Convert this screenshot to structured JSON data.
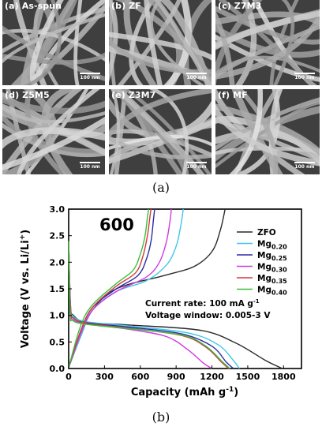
{
  "figure": {
    "panel_a": {
      "caption": "(a)",
      "images": [
        {
          "label": "(a) As-spun",
          "scale_bar": "100 nm"
        },
        {
          "label": "(b) ZF",
          "scale_bar": "100 nm"
        },
        {
          "label": "(c) Z7M3",
          "scale_bar": "100 nm"
        },
        {
          "label": "(d) Z5M5",
          "scale_bar": "100 nm"
        },
        {
          "label": "(e) Z3M7",
          "scale_bar": "100 nm"
        },
        {
          "label": "(f) MF",
          "scale_bar": "100 nm"
        }
      ]
    },
    "panel_b": {
      "caption": "(b)",
      "annotation_number": "600",
      "annotation_rate_pre": "Current rate: 100 mA g",
      "annotation_rate_sup": "-1",
      "annotation_window": "Voltage window: 0.005-3 V"
    }
  },
  "chart_data": {
    "type": "line",
    "title": "600",
    "xlabel": "Capacity (mAh g-1)",
    "ylabel": "Voltage (V vs. Li/Li+)",
    "xlim": [
      0,
      1950
    ],
    "ylim": [
      0,
      3.0
    ],
    "xticks": [
      "0",
      "300",
      "600",
      "900",
      "1200",
      "1500",
      "1800"
    ],
    "yticks": [
      "0.0",
      "0.5",
      "1.0",
      "1.5",
      "2.0",
      "2.5",
      "3.0"
    ],
    "legend_position": "top-right",
    "series": [
      {
        "name": "ZFO",
        "color": "#2a2a2a",
        "discharge": [
          [
            0,
            2.4
          ],
          [
            15,
            1.2
          ],
          [
            40,
            1.0
          ],
          [
            150,
            0.87
          ],
          [
            500,
            0.82
          ],
          [
            1100,
            0.72
          ],
          [
            1400,
            0.48
          ],
          [
            1650,
            0.15
          ],
          [
            1790,
            0.0
          ]
        ],
        "charge": [
          [
            0,
            0.02
          ],
          [
            100,
            0.6
          ],
          [
            200,
            1.1
          ],
          [
            400,
            1.5
          ],
          [
            800,
            1.75
          ],
          [
            1050,
            1.92
          ],
          [
            1200,
            2.2
          ],
          [
            1270,
            2.6
          ],
          [
            1310,
            3.0
          ]
        ]
      },
      {
        "name": "Mg0.20",
        "color": "#3ec8e8",
        "discharge": [
          [
            0,
            2.4
          ],
          [
            15,
            1.2
          ],
          [
            40,
            0.98
          ],
          [
            150,
            0.88
          ],
          [
            500,
            0.8
          ],
          [
            1000,
            0.67
          ],
          [
            1250,
            0.45
          ],
          [
            1380,
            0.15
          ],
          [
            1430,
            0.0
          ]
        ],
        "charge": [
          [
            0,
            0.02
          ],
          [
            100,
            0.6
          ],
          [
            200,
            1.1
          ],
          [
            400,
            1.45
          ],
          [
            650,
            1.65
          ],
          [
            820,
            1.95
          ],
          [
            900,
            2.3
          ],
          [
            940,
            2.7
          ],
          [
            960,
            3.0
          ]
        ]
      },
      {
        "name": "Mg0.25",
        "color": "#2c2ca8",
        "discharge": [
          [
            0,
            2.4
          ],
          [
            15,
            1.15
          ],
          [
            40,
            0.95
          ],
          [
            150,
            0.86
          ],
          [
            500,
            0.78
          ],
          [
            950,
            0.65
          ],
          [
            1200,
            0.42
          ],
          [
            1320,
            0.12
          ],
          [
            1380,
            0.0
          ]
        ],
        "charge": [
          [
            0,
            0.02
          ],
          [
            100,
            0.7
          ],
          [
            200,
            1.15
          ],
          [
            400,
            1.5
          ],
          [
            580,
            1.75
          ],
          [
            650,
            2.05
          ],
          [
            690,
            2.4
          ],
          [
            710,
            2.8
          ],
          [
            720,
            3.0
          ]
        ]
      },
      {
        "name": "Mg0.30",
        "color": "#d03ae0",
        "discharge": [
          [
            0,
            2.4
          ],
          [
            15,
            1.1
          ],
          [
            40,
            0.92
          ],
          [
            150,
            0.84
          ],
          [
            500,
            0.74
          ],
          [
            820,
            0.6
          ],
          [
            1000,
            0.35
          ],
          [
            1130,
            0.1
          ],
          [
            1200,
            0.0
          ]
        ],
        "charge": [
          [
            0,
            0.02
          ],
          [
            100,
            0.65
          ],
          [
            200,
            1.1
          ],
          [
            400,
            1.45
          ],
          [
            650,
            1.72
          ],
          [
            760,
            2.0
          ],
          [
            820,
            2.4
          ],
          [
            850,
            2.8
          ],
          [
            860,
            3.0
          ]
        ]
      },
      {
        "name": "Mg0.35",
        "color": "#d23b3b",
        "discharge": [
          [
            0,
            2.4
          ],
          [
            15,
            1.1
          ],
          [
            40,
            0.95
          ],
          [
            150,
            0.85
          ],
          [
            500,
            0.76
          ],
          [
            950,
            0.62
          ],
          [
            1150,
            0.4
          ],
          [
            1280,
            0.12
          ],
          [
            1340,
            0.0
          ]
        ],
        "charge": [
          [
            0,
            0.02
          ],
          [
            100,
            0.7
          ],
          [
            200,
            1.15
          ],
          [
            400,
            1.55
          ],
          [
            560,
            1.8
          ],
          [
            620,
            2.1
          ],
          [
            660,
            2.5
          ],
          [
            680,
            2.85
          ],
          [
            690,
            3.0
          ]
        ]
      },
      {
        "name": "Mg0.40",
        "color": "#3bbf3b",
        "discharge": [
          [
            0,
            2.4
          ],
          [
            12,
            1.05
          ],
          [
            35,
            0.9
          ],
          [
            150,
            0.83
          ],
          [
            500,
            0.75
          ],
          [
            950,
            0.63
          ],
          [
            1150,
            0.42
          ],
          [
            1290,
            0.12
          ],
          [
            1350,
            0.0
          ]
        ],
        "charge": [
          [
            0,
            0.02
          ],
          [
            100,
            0.8
          ],
          [
            200,
            1.2
          ],
          [
            400,
            1.6
          ],
          [
            540,
            1.85
          ],
          [
            600,
            2.15
          ],
          [
            640,
            2.5
          ],
          [
            660,
            2.85
          ],
          [
            670,
            3.0
          ]
        ]
      }
    ]
  }
}
